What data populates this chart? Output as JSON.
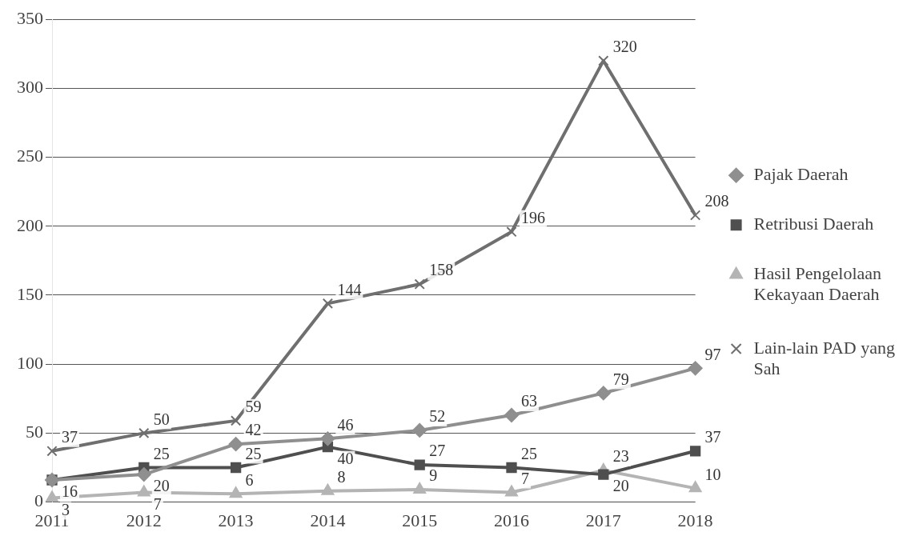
{
  "chart_data": {
    "type": "line",
    "categories": [
      "2011",
      "2012",
      "2013",
      "2014",
      "2015",
      "2016",
      "2017",
      "2018"
    ],
    "series": [
      {
        "name": "Pajak Daerah",
        "color": "#8f8f8f",
        "marker": "diamond",
        "values": [
          16,
          20,
          42,
          46,
          52,
          63,
          79,
          97
        ],
        "value_labels": [
          null,
          "20",
          "42",
          "46",
          "52",
          "63",
          "79",
          "97"
        ]
      },
      {
        "name": "Retribusi Daerah",
        "color": "#4f4f4f",
        "marker": "square",
        "values": [
          16,
          25,
          25,
          40,
          27,
          25,
          20,
          37
        ],
        "value_labels": [
          "16",
          "25",
          "25",
          "40",
          "27",
          "25",
          "20",
          "37"
        ]
      },
      {
        "name": "Hasil Pengelolaan Kekayaan Daerah",
        "color": "#b4b4b4",
        "marker": "triangle",
        "values": [
          3,
          7,
          6,
          8,
          9,
          7,
          23,
          10
        ],
        "value_labels": [
          "3",
          "7",
          "6",
          "8",
          "9",
          "7",
          "23",
          "10"
        ]
      },
      {
        "name": "Lain-lain PAD yang Sah",
        "color": "#6f6f6f",
        "marker": "cross",
        "values": [
          37,
          50,
          59,
          144,
          158,
          196,
          320,
          208
        ],
        "value_labels": [
          "37",
          "50",
          "59",
          "144",
          "158",
          "196",
          "320",
          "208"
        ]
      }
    ],
    "ylim": [
      0,
      350
    ],
    "yticks": [
      0,
      50,
      100,
      150,
      200,
      250,
      300,
      350
    ],
    "grid": "y",
    "legend": "right"
  }
}
